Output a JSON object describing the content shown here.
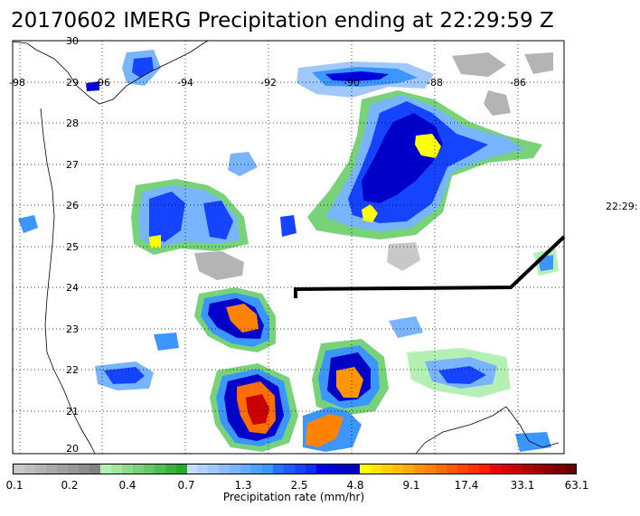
{
  "title": "20170602 IMERG Precipitation ending at 22:29:59 Z",
  "side_time": "22:29:",
  "lon_labels": [
    "-98",
    "-96",
    "-94",
    "-92",
    "-90",
    "-88",
    "-86"
  ],
  "lat_labels": [
    "30",
    "29",
    "28",
    "27",
    "26",
    "25",
    "24",
    "23",
    "22",
    "21",
    "20"
  ],
  "colorbar": {
    "title": "Precipitation rate (mm/hr)",
    "tick_labels": [
      "0.1",
      "0.2",
      "0.4",
      "0.7",
      "1.3",
      "2.5",
      "4.8",
      "9.1",
      "17.4",
      "33.1",
      "63.1"
    ],
    "colors": [
      "#c8c8c8",
      "#bebebe",
      "#b4b4b4",
      "#aaaaaa",
      "#a0a0a0",
      "#969696",
      "#8c8c8c",
      "#828282",
      "#b4f0b4",
      "#a0e6a0",
      "#8cdc8c",
      "#78d278",
      "#64c864",
      "#50be50",
      "#3cb43c",
      "#28aa28",
      "#c8dcff",
      "#b4d2ff",
      "#a0c8ff",
      "#8cbeff",
      "#78b4ff",
      "#64aaff",
      "#50a0ff",
      "#3c96ff",
      "#2870ff",
      "#1e5aff",
      "#1444ff",
      "#0a2eff",
      "#0000f0",
      "#0000dc",
      "#0000c8",
      "#0000b4",
      "#ffff00",
      "#ffe600",
      "#ffd200",
      "#ffbe00",
      "#ffaa00",
      "#ff9600",
      "#ff8200",
      "#ff6e00",
      "#ff5a00",
      "#ff4600",
      "#ff3200",
      "#ff1e00",
      "#f00000",
      "#dc0000",
      "#c80000",
      "#b40000",
      "#a00000",
      "#8c0000",
      "#780000",
      "#640000"
    ]
  }
}
